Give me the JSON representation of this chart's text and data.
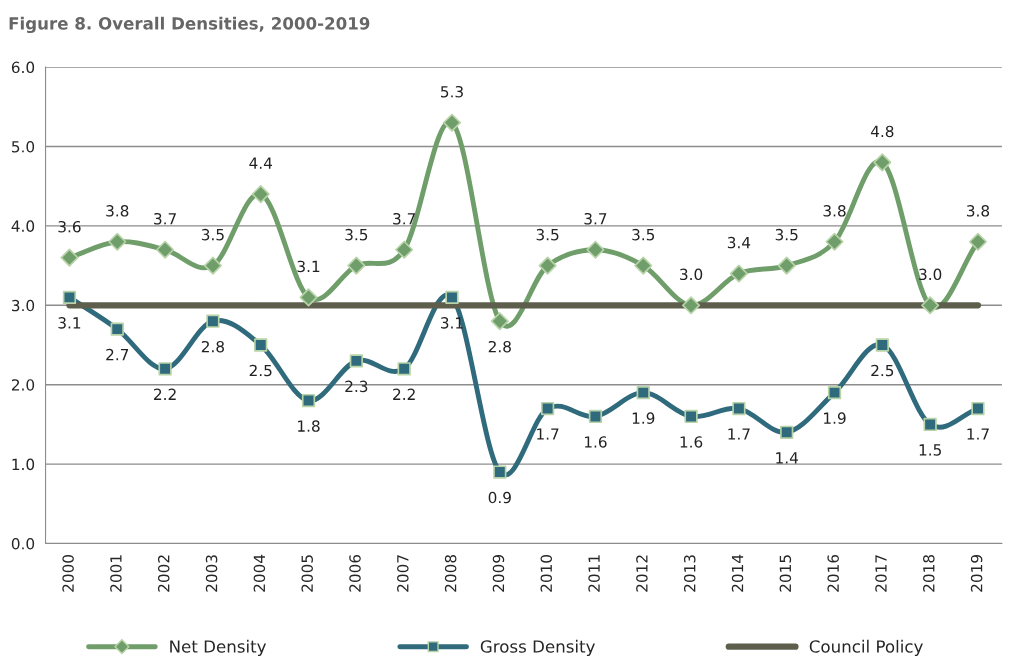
{
  "chart_data": {
    "type": "line",
    "title": "Figure 8. Overall Densities, 2000-2019",
    "categories": [
      "2000",
      "2001",
      "2002",
      "2003",
      "2004",
      "2005",
      "2006",
      "2007",
      "2008",
      "2009",
      "2010",
      "2011",
      "2012",
      "2013",
      "2014",
      "2015",
      "2016",
      "2017",
      "2018",
      "2019"
    ],
    "series": [
      {
        "name": "Net Density",
        "color": "#6f9e6a",
        "marker": "diamond",
        "value_labels": [
          "3.6",
          "3.8",
          "3.7",
          "3.5",
          "4.4",
          "3.1",
          "3.5",
          "3.7",
          "5.3",
          "2.8",
          "3.5",
          "3.7",
          "3.5",
          "3.0",
          "3.4",
          "3.5",
          "3.8",
          "4.8",
          "3.0",
          "3.8"
        ],
        "values": [
          3.6,
          3.8,
          3.7,
          3.5,
          4.4,
          3.1,
          3.5,
          3.7,
          5.3,
          2.8,
          3.5,
          3.7,
          3.5,
          3.0,
          3.4,
          3.5,
          3.8,
          4.8,
          3.0,
          3.8
        ]
      },
      {
        "name": "Gross Density",
        "color": "#2f6b7c",
        "marker": "square",
        "value_labels": [
          "3.1",
          "2.7",
          "2.2",
          "2.8",
          "2.5",
          "1.8",
          "2.3",
          "2.2",
          "3.1",
          "0.9",
          "1.7",
          "1.6",
          "1.9",
          "1.6",
          "1.7",
          "1.4",
          "1.9",
          "2.5",
          "1.5",
          "1.7"
        ],
        "values": [
          3.1,
          2.7,
          2.2,
          2.8,
          2.5,
          1.8,
          2.3,
          2.2,
          3.1,
          0.9,
          1.7,
          1.6,
          1.9,
          1.6,
          1.7,
          1.4,
          1.9,
          2.5,
          1.5,
          1.7
        ]
      },
      {
        "name": "Council Policy",
        "color": "#5e5e4c",
        "marker": "none",
        "values": [
          3.0,
          3.0,
          3.0,
          3.0,
          3.0,
          3.0,
          3.0,
          3.0,
          3.0,
          3.0,
          3.0,
          3.0,
          3.0,
          3.0,
          3.0,
          3.0,
          3.0,
          3.0,
          3.0,
          3.0
        ]
      }
    ],
    "ylim": [
      0,
      6
    ],
    "yticks": [
      {
        "value": 0,
        "label": "0.0"
      },
      {
        "value": 1,
        "label": "1.0"
      },
      {
        "value": 2,
        "label": "2.0"
      },
      {
        "value": 3,
        "label": "3.0"
      },
      {
        "value": 4,
        "label": "4.0"
      },
      {
        "value": 5,
        "label": "5.0"
      },
      {
        "value": 6,
        "label": "6.0"
      }
    ],
    "grid": "y",
    "legend": "bottom",
    "line_style": "solid"
  }
}
